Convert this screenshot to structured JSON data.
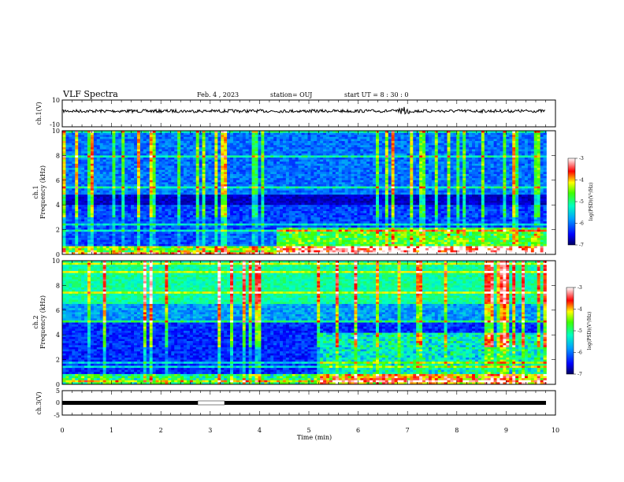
{
  "header": {
    "title": "VLF Spectra",
    "date": "Feb. 4 , 2023",
    "station": "station= OUJ",
    "start": "start UT = 8 : 30 : 0"
  },
  "colors": {
    "background": "#ffffff",
    "axis": "#000000",
    "spectrogram_low": "#000080",
    "spectrogram_mid": "#00ff00",
    "spectrogram_high": "#ff0000"
  },
  "chart_data": [
    {
      "type": "line",
      "panel": "ch1-waveform",
      "ylabel": "ch.1(V)",
      "yticks": [
        "10",
        "-10"
      ],
      "ylim": [
        -10,
        10
      ],
      "xlim": [
        0,
        10
      ],
      "series": [
        {
          "values_description_note": "",
          "values": [
            0.0
          ]
        }
      ]
    },
    {
      "type": "heatmap",
      "panel": "ch1-spectrogram",
      "ylabel": "ch.1\nFrequency (kHz)",
      "ylabel_lines": [
        "ch.1",
        "Frequency (kHz)"
      ],
      "yticks": [
        "0",
        "2",
        "4",
        "6",
        "8",
        "10"
      ],
      "ylim": [
        0,
        10
      ],
      "xlim": [
        0,
        10
      ],
      "colorbar": {
        "label": "log(PSD)(V²/Hz)",
        "ticks": [
          "-3",
          "-4",
          "-5",
          "-6",
          "-7"
        ],
        "range": [
          -7,
          -3
        ]
      }
    },
    {
      "type": "heatmap",
      "panel": "ch2-spectrogram",
      "ylabel_lines": [
        "ch.2",
        "Frequency (kHz)"
      ],
      "yticks": [
        "0",
        "2",
        "4",
        "6",
        "8",
        "10"
      ],
      "ylim": [
        0,
        10
      ],
      "xlim": [
        0,
        10
      ],
      "colorbar": {
        "label": "log(PSD)(V²/Hz)",
        "ticks": [
          "-3",
          "-4",
          "-5",
          "-6",
          "-7"
        ],
        "range": [
          -7,
          -3
        ]
      }
    },
    {
      "type": "line",
      "panel": "ch3-waveform",
      "ylabel": "ch.3(V)",
      "yticks": [
        "5",
        "0",
        "-5"
      ],
      "ylim": [
        -5,
        5
      ],
      "xlim": [
        0,
        10
      ],
      "series": [
        {
          "values": [
            -2,
            -2,
            -2
          ]
        }
      ]
    }
  ],
  "xaxis": {
    "label": "Time (min)",
    "ticks": [
      "0",
      "1",
      "2",
      "3",
      "4",
      "5",
      "6",
      "7",
      "8",
      "9",
      "10"
    ]
  }
}
